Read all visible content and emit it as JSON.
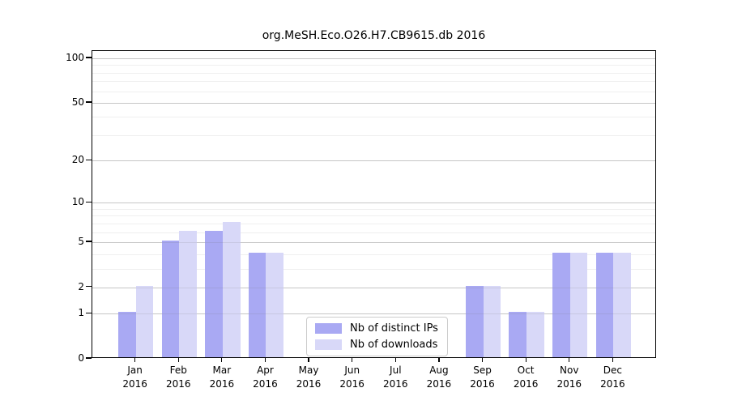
{
  "chart_data": {
    "type": "bar",
    "title": "org.MeSH.Eco.O26.H7.CB9615.db 2016",
    "categories": [
      "Jan 2016",
      "Feb 2016",
      "Mar 2016",
      "Apr 2016",
      "May 2016",
      "Jun 2016",
      "Jul 2016",
      "Aug 2016",
      "Sep 2016",
      "Oct 2016",
      "Nov 2016",
      "Dec 2016"
    ],
    "series": [
      {
        "name": "Nb of distinct IPs",
        "color": "#a9a9f3",
        "values": [
          1,
          5,
          6,
          4,
          0,
          0,
          0,
          0,
          2,
          1,
          4,
          4
        ]
      },
      {
        "name": "Nb of downloads",
        "color": "#d8d8f8",
        "values": [
          2,
          6,
          7,
          4,
          0,
          0,
          0,
          0,
          2,
          1,
          4,
          4
        ]
      }
    ],
    "yscale": "log1p",
    "yticks": [
      0,
      1,
      2,
      5,
      10,
      20,
      50,
      100
    ],
    "minor_yticks": [
      3,
      4,
      6,
      7,
      8,
      9,
      30,
      40,
      60,
      70,
      80,
      90
    ],
    "ylim": [
      0,
      112
    ],
    "xlabel": "",
    "ylabel": "",
    "grid": true,
    "legend_position": "lower center",
    "bar_colors_note": {
      "accent_dark": "#a9a9f3",
      "accent_light": "#d8d8f8",
      "grid_major": "#d7d7d7",
      "grid_minor": "#efefef"
    }
  }
}
